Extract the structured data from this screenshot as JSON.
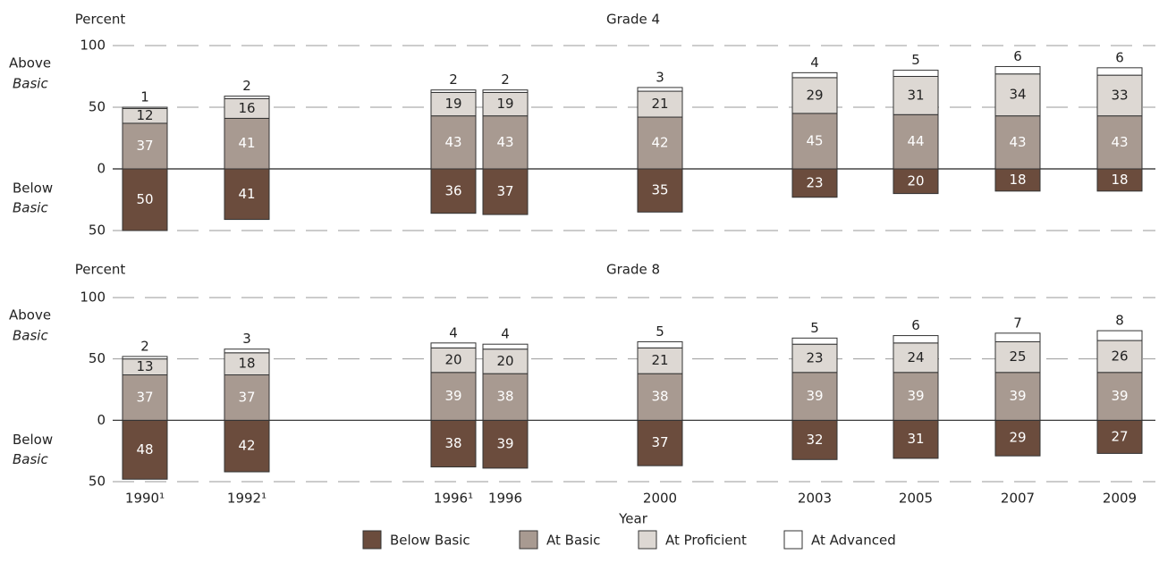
{
  "chart_data": [
    {
      "type": "bar",
      "stacked": true,
      "title": "Grade 4",
      "ylabel": "Percent",
      "above_label": [
        "Above",
        "Basic"
      ],
      "below_label": [
        "Below",
        "Basic"
      ],
      "ylim": [
        -50,
        100
      ],
      "yticks": [
        {
          "value": -50,
          "label": "50"
        },
        0,
        50,
        100
      ],
      "grid": true,
      "series": [
        {
          "color": "#6b4c3d",
          "values": [
            -50,
            -41,
            -36,
            -37,
            -35,
            -23,
            -20,
            -18,
            -18
          ],
          "value_labels": [
            "50",
            "41",
            "36",
            "37",
            "35",
            "23",
            "20",
            "18",
            "18"
          ]
        },
        {
          "color": "#a89a91",
          "values": [
            37,
            41,
            43,
            43,
            42,
            45,
            44,
            43,
            43
          ]
        },
        {
          "color": "#ddd8d3",
          "values": [
            12,
            16,
            19,
            19,
            21,
            29,
            31,
            34,
            33
          ]
        },
        {
          "color": "#ffffff",
          "values": [
            1,
            2,
            2,
            2,
            3,
            4,
            5,
            6,
            6
          ]
        }
      ]
    },
    {
      "type": "bar",
      "stacked": true,
      "title": "Grade 8",
      "ylabel": "Percent",
      "above_label": [
        "Above",
        "Basic"
      ],
      "below_label": [
        "Below",
        "Basic"
      ],
      "xlabel": "Year",
      "categories": [
        "1990¹",
        "1992¹",
        "1996¹",
        "1996",
        "2000",
        "2003",
        "2005",
        "2007",
        "2009"
      ],
      "ylim": [
        -50,
        100
      ],
      "yticks": [
        {
          "value": -50,
          "label": "50"
        },
        0,
        50,
        100
      ],
      "grid": true,
      "series": [
        {
          "name": "Below Basic",
          "color": "#6b4c3d",
          "values": [
            -48,
            -42,
            -38,
            -39,
            -37,
            -32,
            -31,
            -29,
            -27
          ],
          "value_labels": [
            "48",
            "42",
            "38",
            "39",
            "37",
            "32",
            "31",
            "29",
            "27"
          ]
        },
        {
          "name": "At Basic",
          "color": "#a89a91",
          "values": [
            37,
            37,
            39,
            38,
            38,
            39,
            39,
            39,
            39
          ]
        },
        {
          "name": "At Proficient",
          "color": "#ddd8d3",
          "values": [
            13,
            18,
            20,
            20,
            21,
            23,
            24,
            25,
            26
          ]
        },
        {
          "name": "At Advanced",
          "color": "#ffffff",
          "values": [
            2,
            3,
            4,
            4,
            5,
            5,
            6,
            7,
            8
          ]
        }
      ]
    }
  ]
}
